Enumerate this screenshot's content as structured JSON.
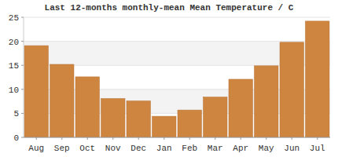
{
  "chart_data": {
    "type": "bar",
    "title": "Last 12-months monthly-mean Mean Temperature / C",
    "categories": [
      "Aug",
      "Sep",
      "Oct",
      "Nov",
      "Dec",
      "Jan",
      "Feb",
      "Mar",
      "Apr",
      "May",
      "Jun",
      "Jul"
    ],
    "values": [
      19.1,
      15.2,
      12.6,
      8.1,
      7.6,
      4.4,
      5.7,
      8.4,
      12.1,
      14.9,
      19.8,
      24.2
    ],
    "color": "#cd853f",
    "ylim": [
      0,
      25
    ],
    "yticks": [
      0,
      5,
      10,
      15,
      20,
      25
    ],
    "grid": true
  }
}
